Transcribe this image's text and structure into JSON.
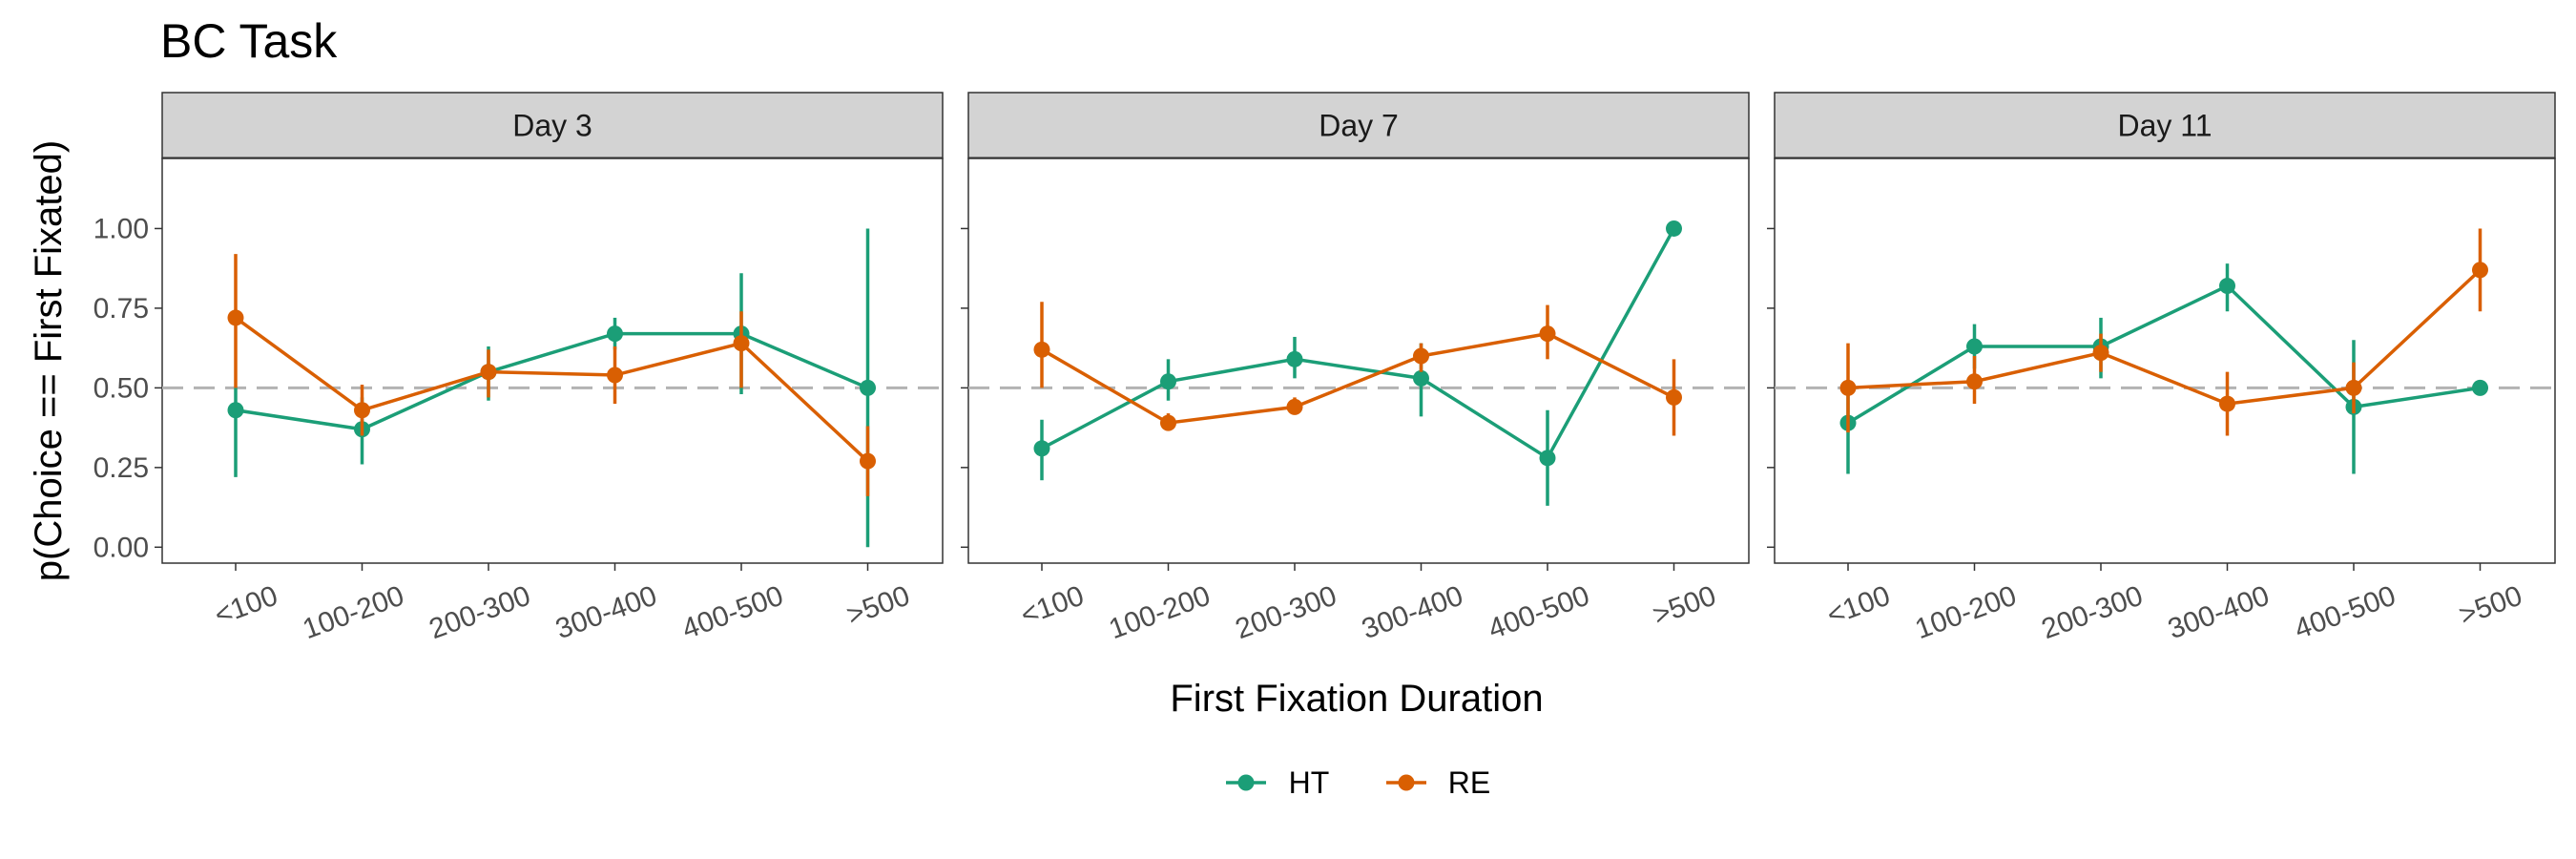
{
  "chart_data": {
    "type": "line",
    "title": "BC Task",
    "xlabel": "First Fixation Duration",
    "ylabel": "p(Choice == First Fixated)",
    "ylim": [
      -0.05,
      1.22
    ],
    "yticks": [
      "0.00",
      "0.25",
      "0.50",
      "0.75",
      "1.00"
    ],
    "reference_line": 0.5,
    "categories": [
      "<100",
      "100-200",
      "200-300",
      "300-400",
      "400-500",
      ">500"
    ],
    "legend": {
      "position": "bottom",
      "entries": [
        "HT",
        "RE"
      ]
    },
    "colors": {
      "HT": "#1b9e77",
      "RE": "#d95f02",
      "reference": "#b3b3b3",
      "strip": "#d3d3d3"
    },
    "panels": [
      {
        "label": "Day 3",
        "series": [
          {
            "name": "HT",
            "values": [
              0.43,
              0.37,
              0.55,
              0.67,
              0.67,
              0.5
            ],
            "lower": [
              0.22,
              0.26,
              0.46,
              0.62,
              0.48,
              0.0
            ],
            "upper": [
              0.5,
              0.47,
              0.63,
              0.72,
              0.86,
              1.0
            ]
          },
          {
            "name": "RE",
            "values": [
              0.72,
              0.43,
              0.55,
              0.54,
              0.64,
              0.27
            ],
            "lower": [
              0.5,
              0.35,
              0.47,
              0.45,
              0.5,
              0.16
            ],
            "upper": [
              0.92,
              0.51,
              0.62,
              0.63,
              0.74,
              0.38
            ]
          }
        ]
      },
      {
        "label": "Day 7",
        "series": [
          {
            "name": "HT",
            "values": [
              0.31,
              0.52,
              0.59,
              0.53,
              0.28,
              1.0
            ],
            "lower": [
              0.21,
              0.46,
              0.53,
              0.41,
              0.13,
              1.0
            ],
            "upper": [
              0.4,
              0.59,
              0.66,
              0.64,
              0.43,
              1.0
            ]
          },
          {
            "name": "RE",
            "values": [
              0.62,
              0.39,
              0.44,
              0.6,
              0.67,
              0.47
            ],
            "lower": [
              0.5,
              0.37,
              0.42,
              0.55,
              0.59,
              0.35
            ],
            "upper": [
              0.77,
              0.42,
              0.47,
              0.64,
              0.76,
              0.59
            ]
          }
        ]
      },
      {
        "label": "Day 11",
        "series": [
          {
            "name": "HT",
            "values": [
              0.39,
              0.63,
              0.63,
              0.82,
              0.44,
              0.5
            ],
            "lower": [
              0.23,
              0.56,
              0.53,
              0.74,
              0.23,
              0.5
            ],
            "upper": [
              0.5,
              0.7,
              0.72,
              0.89,
              0.65,
              0.5
            ]
          },
          {
            "name": "RE",
            "values": [
              0.5,
              0.52,
              0.61,
              0.45,
              0.5,
              0.87
            ],
            "lower": [
              0.36,
              0.45,
              0.55,
              0.35,
              0.42,
              0.74
            ],
            "upper": [
              0.64,
              0.6,
              0.67,
              0.55,
              0.58,
              1.0
            ]
          }
        ]
      }
    ]
  }
}
